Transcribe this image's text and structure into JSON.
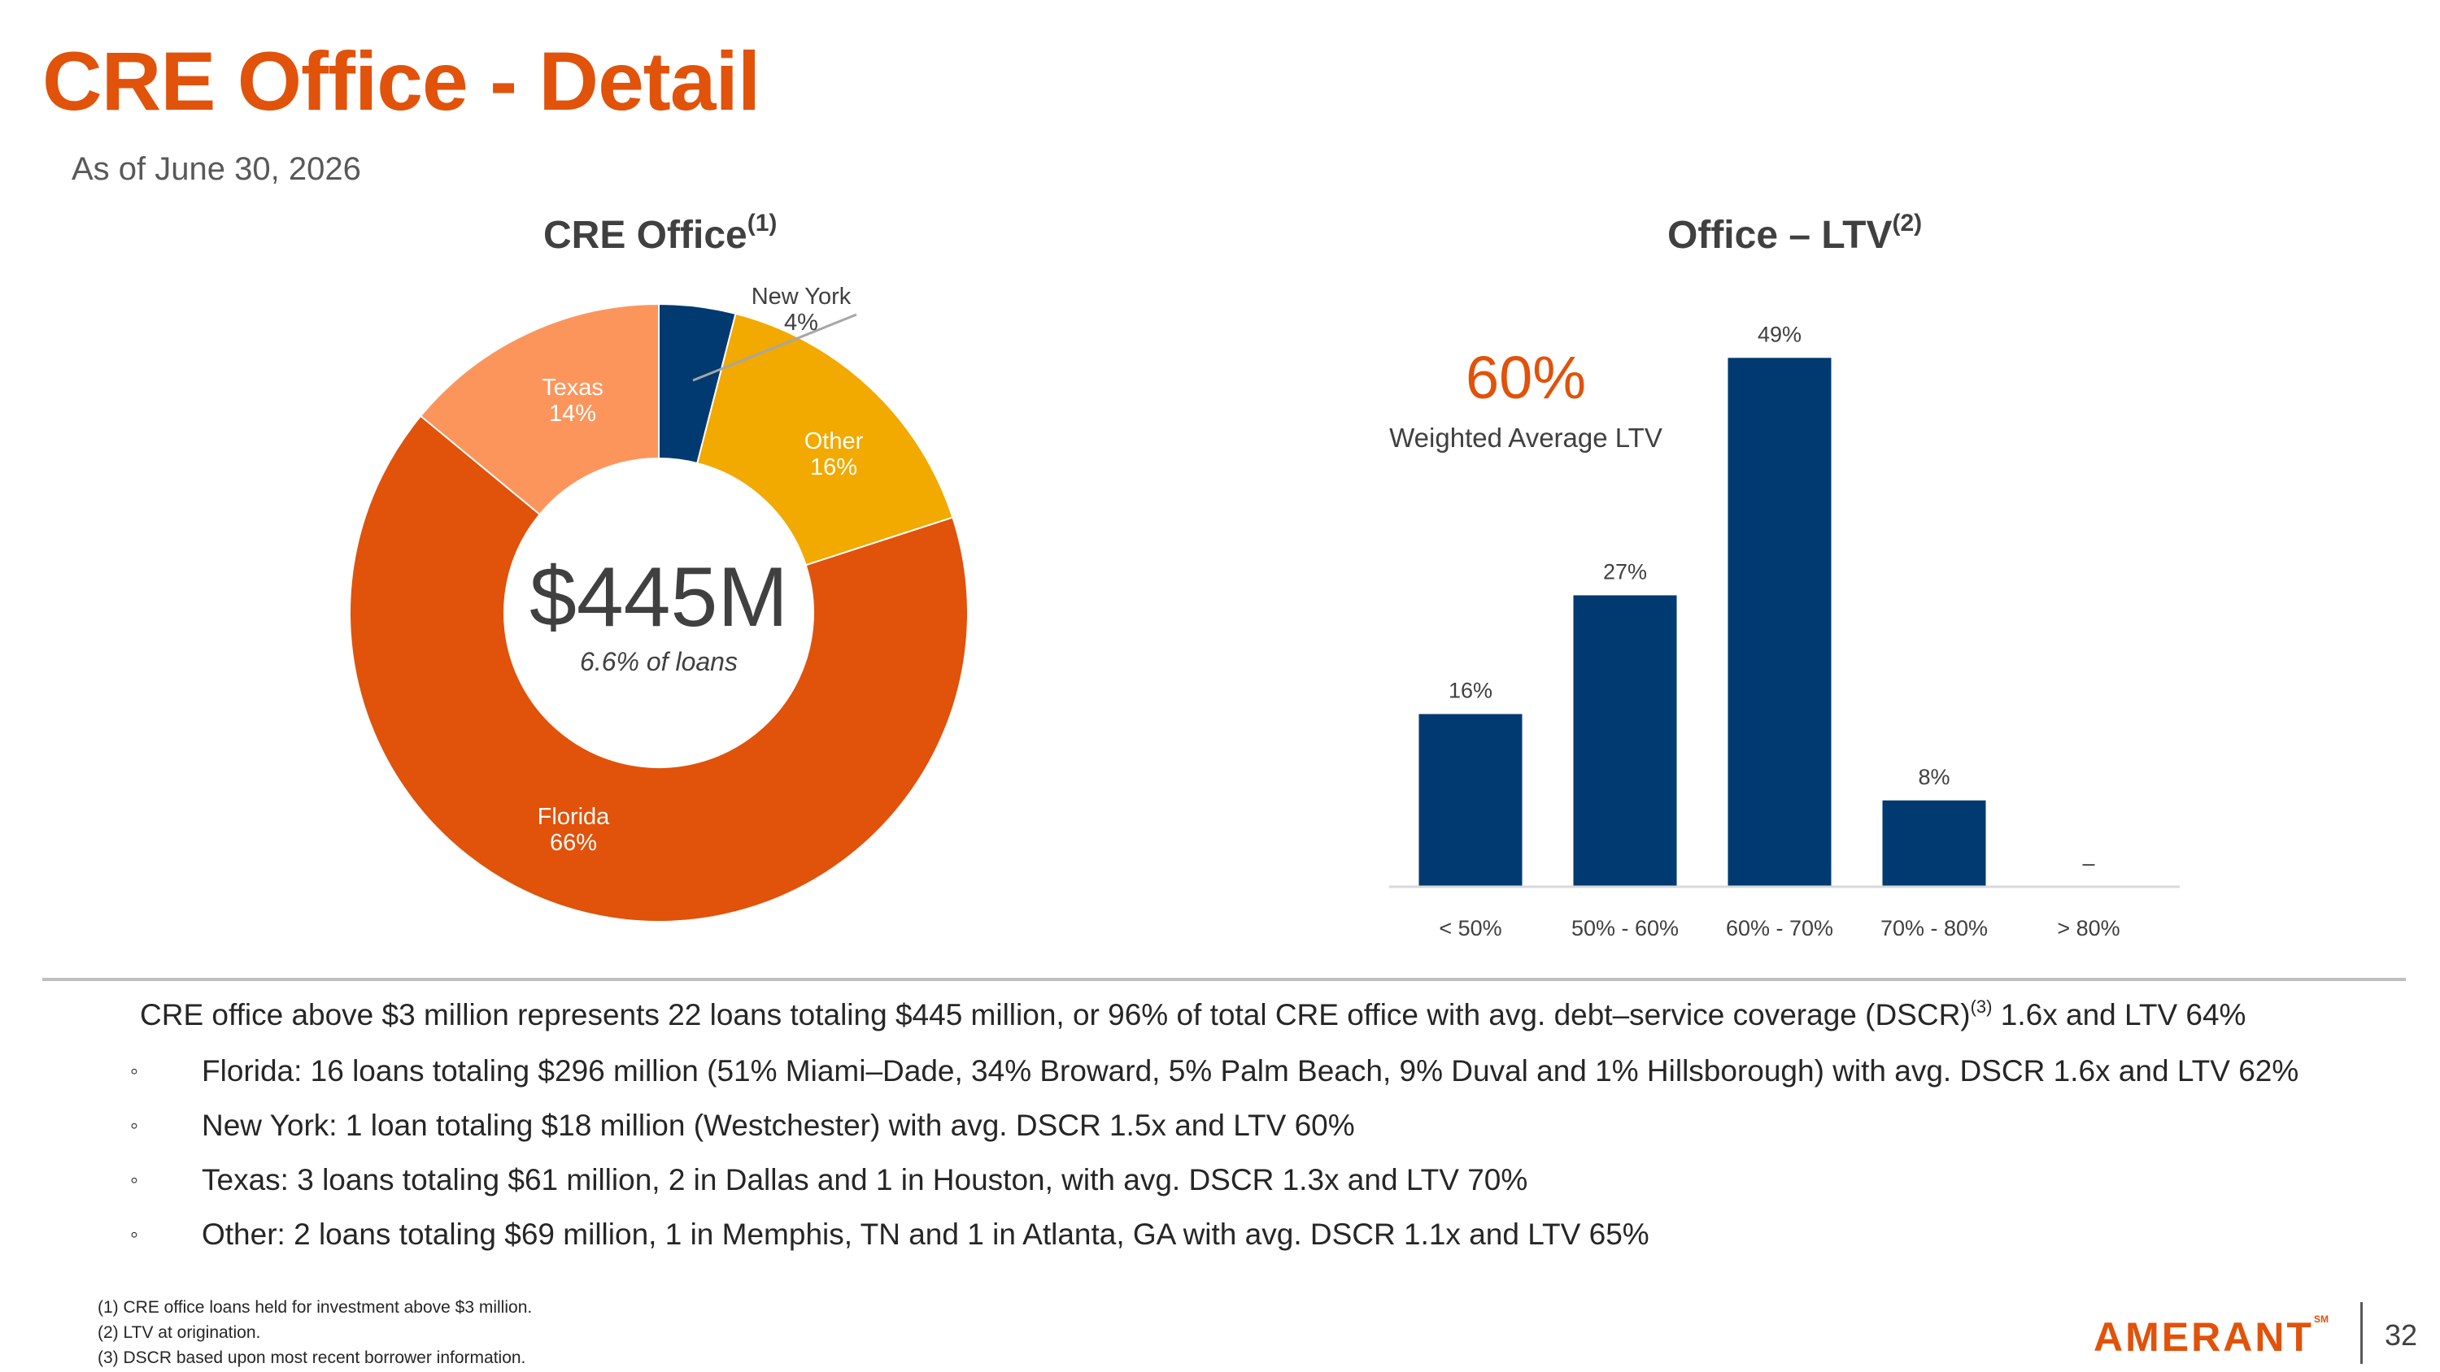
{
  "header": {
    "title": "CRE Office - Detail",
    "as_of": "As of June 30, 2026"
  },
  "donut": {
    "title": "CRE Office",
    "title_sup": "(1)",
    "center_value": "$445M",
    "center_sub": "6.6% of loans"
  },
  "bar": {
    "title": "Office – LTV",
    "title_sup": "(2)",
    "highlight_value": "60%",
    "highlight_label": "Weighted Average LTV"
  },
  "chart_data": [
    {
      "type": "pie",
      "variant": "donut",
      "title": "CRE Office",
      "total": "$445M",
      "slices": [
        {
          "label": "New York",
          "value": 4,
          "display": "4%",
          "color": "#003a70"
        },
        {
          "label": "Other",
          "value": 16,
          "display": "16%",
          "color": "#f2a900"
        },
        {
          "label": "Florida",
          "value": 66,
          "display": "66%",
          "color": "#e1520a"
        },
        {
          "label": "Texas",
          "value": 14,
          "display": "14%",
          "color": "#fc955c"
        }
      ]
    },
    {
      "type": "bar",
      "title": "Office – LTV",
      "categories": [
        "< 50%",
        "50% - 60%",
        "60% - 70%",
        "70% - 80%",
        "> 80%"
      ],
      "values": [
        16,
        27,
        49,
        8,
        0
      ],
      "labels": [
        "16%",
        "27%",
        "49%",
        "8%",
        "–"
      ],
      "color": "#003a70",
      "ylim": [
        0,
        50
      ]
    }
  ],
  "summary": {
    "pre": "CRE office above $3 million represents 22 loans totaling $445 million, or 96% of total CRE office with avg. debt–service coverage (DSCR)",
    "sup": "(3)",
    "post": " 1.6x and LTV 64%"
  },
  "bullets": {
    "mark": "◦",
    "items": [
      "Florida: 16 loans totaling $296 million (51% Miami–Dade, 34% Broward, 5% Palm Beach, 9% Duval and 1% Hillsborough) with avg. DSCR 1.6x and LTV 62%",
      "New York: 1 loan totaling $18 million (Westchester) with avg. DSCR 1.5x and LTV 60%",
      "Texas: 3 loans totaling $61 million, 2 in Dallas and 1 in Houston, with avg. DSCR 1.3x and LTV 70%",
      "Other: 2 loans totaling $69 million, 1 in Memphis, TN and 1 in Atlanta, GA with avg. DSCR 1.1x and LTV 65%"
    ]
  },
  "footnotes": [
    "(1) CRE office loans held for investment above $3 million.",
    "(2) LTV at origination.",
    "(3) DSCR based upon most recent borrower information."
  ],
  "footer": {
    "logo_text": "AMERANT",
    "logo_mark": "SM",
    "page_number": "32"
  },
  "colors": {
    "brand_orange": "#e1520a",
    "navy": "#003a70",
    "gold": "#f2a900",
    "light_orange": "#fc955c"
  }
}
